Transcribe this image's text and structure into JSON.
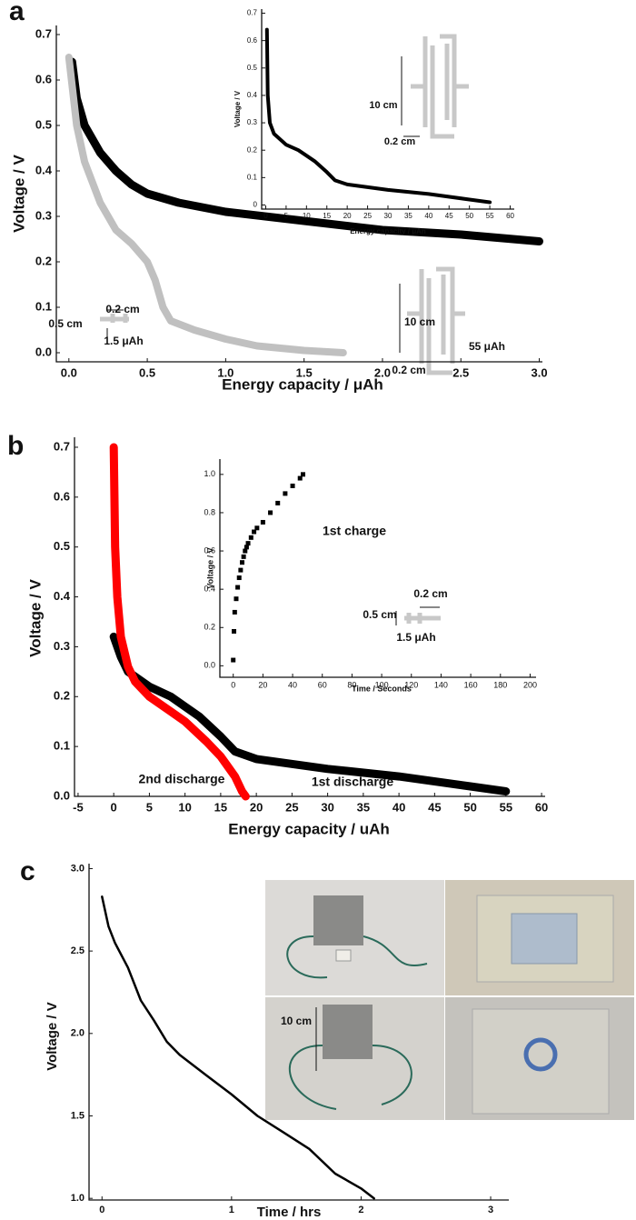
{
  "chart_data": [
    {
      "type": "line",
      "panel_label": "a",
      "x_label": "Energy capacity / μAh",
      "y_label": "Voltage / V",
      "xlim": [
        -0.08,
        3.02
      ],
      "ylim": [
        -0.02,
        0.72
      ],
      "xticks": [
        {
          "value": 0,
          "label": "0.0"
        },
        0.5,
        {
          "value": 1,
          "label": "1.0"
        },
        1.5,
        {
          "value": 2,
          "label": "2.0"
        },
        2.5,
        {
          "value": 3,
          "label": "3.0"
        }
      ],
      "yticks": [
        {
          "value": 0,
          "label": "0.0"
        },
        0.1,
        0.2,
        0.3,
        0.4,
        0.5,
        0.6,
        0.7
      ],
      "series": [
        {
          "color": "#000000",
          "x": [
            0.02,
            0.05,
            0.1,
            0.2,
            0.3,
            0.4,
            0.5,
            0.7,
            1.0,
            1.5,
            2.0,
            2.5,
            3.0
          ],
          "values": [
            0.64,
            0.56,
            0.5,
            0.44,
            0.4,
            0.37,
            0.35,
            0.33,
            0.31,
            0.29,
            0.27,
            0.26,
            0.245
          ]
        },
        {
          "color": "#c0c0c0",
          "x": [
            0,
            0.05,
            0.1,
            0.2,
            0.3,
            0.4,
            0.5,
            0.55,
            0.6,
            0.65,
            0.8,
            1.0,
            1.2,
            1.5,
            1.75
          ],
          "values": [
            0.65,
            0.5,
            0.42,
            0.33,
            0.27,
            0.24,
            0.2,
            0.16,
            0.1,
            0.07,
            0.05,
            0.03,
            0.015,
            0.005,
            0
          ]
        }
      ],
      "annotations": [
        "0.2 cm",
        "0.5 cm",
        "1.5 μAh",
        "10 cm",
        "0.2 cm",
        "55 μAh"
      ]
    },
    {
      "type": "line",
      "x_label": "Energy capacity / μAh",
      "y_label": "Voltage / V",
      "xlim": [
        -1,
        61
      ],
      "ylim": [
        -0.015,
        0.715
      ],
      "xticks": [
        0,
        5,
        10,
        15,
        20,
        25,
        30,
        35,
        40,
        45,
        50,
        55,
        60
      ],
      "yticks": [
        0,
        0.1,
        0.2,
        0.3,
        0.4,
        0.5,
        0.6,
        0.7
      ],
      "series": [
        {
          "color": "#000000",
          "x": [
            0.3,
            0.5,
            1,
            2,
            5,
            8,
            10,
            12,
            15,
            17,
            20,
            30,
            40,
            50,
            55
          ],
          "values": [
            0.64,
            0.4,
            0.3,
            0.26,
            0.22,
            0.2,
            0.18,
            0.16,
            0.12,
            0.09,
            0.075,
            0.055,
            0.04,
            0.02,
            0.01
          ]
        }
      ],
      "annotations": [
        "10 cm",
        "0.2 cm"
      ]
    },
    {
      "type": "line",
      "panel_label": "b",
      "x_label": "Energy capacity / uAh",
      "y_label": "Voltage / V",
      "xlim": [
        -5.5,
        60.5
      ],
      "ylim": [
        0,
        0.72
      ],
      "xticks": [
        -5,
        0,
        5,
        10,
        15,
        20,
        25,
        30,
        35,
        40,
        45,
        50,
        55,
        60
      ],
      "yticks": [
        {
          "value": 0,
          "label": "0.0"
        },
        0.1,
        0.2,
        0.3,
        0.4,
        0.5,
        0.6,
        0.7
      ],
      "series": [
        {
          "name": "1st discharge",
          "color": "#000000",
          "x": [
            0,
            1,
            2,
            5,
            8,
            10,
            12,
            15,
            17,
            20,
            30,
            40,
            50,
            55
          ],
          "values": [
            0.32,
            0.28,
            0.25,
            0.22,
            0.2,
            0.18,
            0.16,
            0.12,
            0.09,
            0.075,
            0.055,
            0.04,
            0.02,
            0.01
          ]
        },
        {
          "name": "2nd discharge",
          "color": "#ff0000",
          "x": [
            0,
            0.2,
            0.5,
            1,
            2,
            3,
            5,
            8,
            10,
            13,
            15,
            17,
            18,
            18.5
          ],
          "values": [
            0.7,
            0.5,
            0.4,
            0.32,
            0.26,
            0.23,
            0.2,
            0.17,
            0.15,
            0.11,
            0.08,
            0.04,
            0.01,
            0
          ]
        }
      ]
    },
    {
      "type": "scatter",
      "x_label": "Time / Seconds",
      "y_label": "Voltage / V",
      "xlim": [
        -9,
        204
      ],
      "ylim": [
        -0.06,
        1.08
      ],
      "xticks": [
        0,
        20,
        40,
        60,
        80,
        100,
        120,
        140,
        160,
        180,
        200
      ],
      "yticks": [
        {
          "value": 0,
          "label": "0.0"
        },
        0.2,
        0.4,
        0.6,
        0.8,
        {
          "value": 1,
          "label": "1.0"
        }
      ],
      "series": [
        {
          "name": "1st charge",
          "color": "#000000",
          "x": [
            0,
            0.5,
            1,
            2,
            3,
            4,
            5,
            6,
            7,
            8,
            9,
            10,
            12,
            14,
            16,
            20,
            25,
            30,
            35,
            40,
            45,
            47
          ],
          "values": [
            0.03,
            0.18,
            0.28,
            0.35,
            0.41,
            0.46,
            0.5,
            0.54,
            0.57,
            0.6,
            0.62,
            0.64,
            0.67,
            0.7,
            0.72,
            0.75,
            0.8,
            0.85,
            0.9,
            0.94,
            0.98,
            1.0
          ]
        }
      ],
      "annotations": [
        "0.2 cm",
        "0.5 cm",
        "1.5 μAh"
      ]
    },
    {
      "type": "line",
      "panel_label": "c",
      "x_label": "Time / hrs",
      "y_label": "Voltage / V",
      "xlim": [
        -0.1,
        3.14
      ],
      "ylim": [
        0.99,
        3.03
      ],
      "xticks": [
        0,
        1,
        2,
        3
      ],
      "yticks": [
        {
          "value": 1,
          "label": "1.0"
        },
        1.5,
        {
          "value": 2,
          "label": "2.0"
        },
        2.5,
        {
          "value": 3,
          "label": "3.0"
        }
      ],
      "series": [
        {
          "color": "#000000",
          "x": [
            0,
            0.05,
            0.1,
            0.2,
            0.3,
            0.4,
            0.5,
            0.6,
            0.8,
            1.0,
            1.2,
            1.4,
            1.6,
            1.8,
            2.0,
            2.1
          ],
          "values": [
            2.83,
            2.65,
            2.55,
            2.4,
            2.2,
            2.08,
            1.95,
            1.87,
            1.75,
            1.63,
            1.5,
            1.4,
            1.3,
            1.15,
            1.06,
            1.0
          ]
        }
      ],
      "annotations": [
        "10 cm"
      ]
    }
  ]
}
